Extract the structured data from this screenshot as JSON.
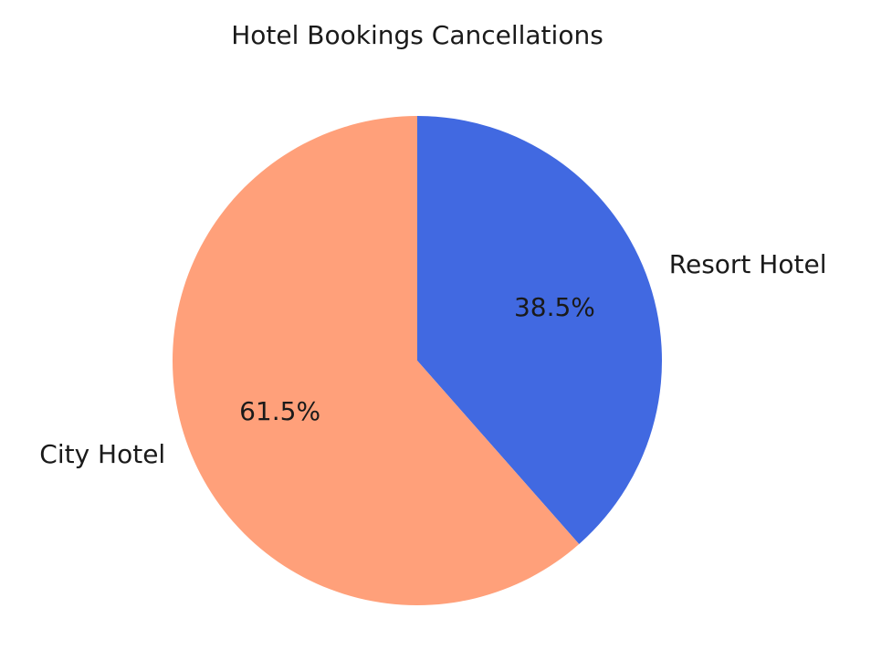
{
  "chart_data": {
    "type": "pie",
    "title": "Hotel Bookings Cancellations",
    "slices": [
      {
        "label": "Resort Hotel",
        "value": 38.5,
        "pct_label": "38.5%",
        "color": "#4169E1"
      },
      {
        "label": "City Hotel",
        "value": 61.5,
        "pct_label": "61.5%",
        "color": "#FFA07A"
      }
    ]
  }
}
